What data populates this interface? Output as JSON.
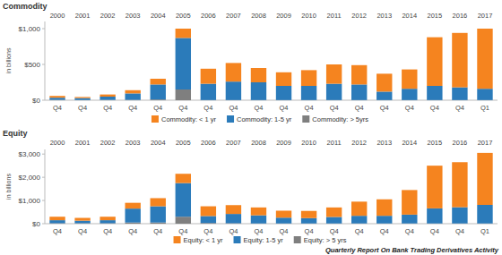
{
  "chart_data": [
    {
      "type": "bar",
      "title": "Commodity",
      "y_label": "in billions",
      "stacked": true,
      "grid": false,
      "legend": "bottom",
      "categories": [
        "2000",
        "2001",
        "2002",
        "2003",
        "2004",
        "2005",
        "2006",
        "2007",
        "2008",
        "2009",
        "2010",
        "2011",
        "2012",
        "2013",
        "2014",
        "2015",
        "2016",
        "2017"
      ],
      "quarters": [
        "Q4",
        "Q4",
        "Q4",
        "Q4",
        "Q4",
        "Q4",
        "Q4",
        "Q4",
        "Q4",
        "Q4",
        "Q4",
        "Q4",
        "Q4",
        "Q4",
        "Q4",
        "Q4",
        "Q4",
        "Q1"
      ],
      "ylim": [
        0,
        1100
      ],
      "yticks": [
        {
          "value": 0,
          "label": "$0"
        },
        {
          "value": 500,
          "label": "$500"
        },
        {
          "value": 1000,
          "label": "$1,000"
        }
      ],
      "series": [
        {
          "name": "Commodity: < 1 yr",
          "color": "#f5841f",
          "values": [
            25,
            15,
            30,
            45,
            80,
            130,
            210,
            260,
            200,
            190,
            220,
            270,
            270,
            250,
            270,
            680,
            760,
            840
          ]
        },
        {
          "name": "Commodity: 1-5 yr",
          "color": "#2b7bba",
          "values": [
            30,
            27,
            45,
            90,
            210,
            720,
            228,
            258,
            248,
            198,
            198,
            228,
            218,
            118,
            158,
            198,
            178,
            158
          ]
        },
        {
          "name": "Commodity: > 5yrs",
          "color": "#7f7f7f",
          "values": [
            5,
            3,
            5,
            5,
            10,
            150,
            2,
            2,
            2,
            2,
            2,
            2,
            2,
            2,
            2,
            2,
            2,
            2
          ]
        }
      ]
    },
    {
      "type": "bar",
      "title": "Equity",
      "y_label": "in billions",
      "stacked": true,
      "grid": false,
      "legend": "bottom",
      "categories": [
        "2000",
        "2001",
        "2002",
        "2003",
        "2004",
        "2005",
        "2006",
        "2007",
        "2008",
        "2009",
        "2010",
        "2011",
        "2012",
        "2013",
        "2014",
        "2015",
        "2016",
        "2017"
      ],
      "quarters": [
        "Q4",
        "Q4",
        "Q4",
        "Q4",
        "Q4",
        "Q4",
        "Q4",
        "Q4",
        "Q4",
        "Q4",
        "Q4",
        "Q4",
        "Q4",
        "Q4",
        "Q4",
        "Q4",
        "Q4",
        "Q1"
      ],
      "ylim": [
        0,
        3200
      ],
      "yticks": [
        {
          "value": 0,
          "label": "$0"
        },
        {
          "value": 1000,
          "label": "$1,000"
        },
        {
          "value": 2000,
          "label": "$2,000"
        },
        {
          "value": 3000,
          "label": "$3,000"
        }
      ],
      "series": [
        {
          "name": "Equity: < 1 yr",
          "color": "#f5841f",
          "values": [
            150,
            120,
            150,
            250,
            350,
            400,
            420,
            380,
            340,
            300,
            310,
            410,
            610,
            710,
            1060,
            1840,
            1940,
            2240
          ]
        },
        {
          "name": "Equity: 1-5 yr",
          "color": "#2b7bba",
          "values": [
            130,
            110,
            130,
            600,
            700,
            1450,
            300,
            400,
            350,
            250,
            230,
            280,
            330,
            330,
            380,
            650,
            700,
            800
          ]
        },
        {
          "name": "Equity: > 5 yrs",
          "color": "#7f7f7f",
          "values": [
            20,
            20,
            20,
            50,
            50,
            300,
            30,
            20,
            10,
            10,
            10,
            10,
            10,
            10,
            10,
            10,
            10,
            10
          ]
        }
      ]
    }
  ],
  "footer": "Quarterly Report On Bank Trading Derivatives Activity"
}
